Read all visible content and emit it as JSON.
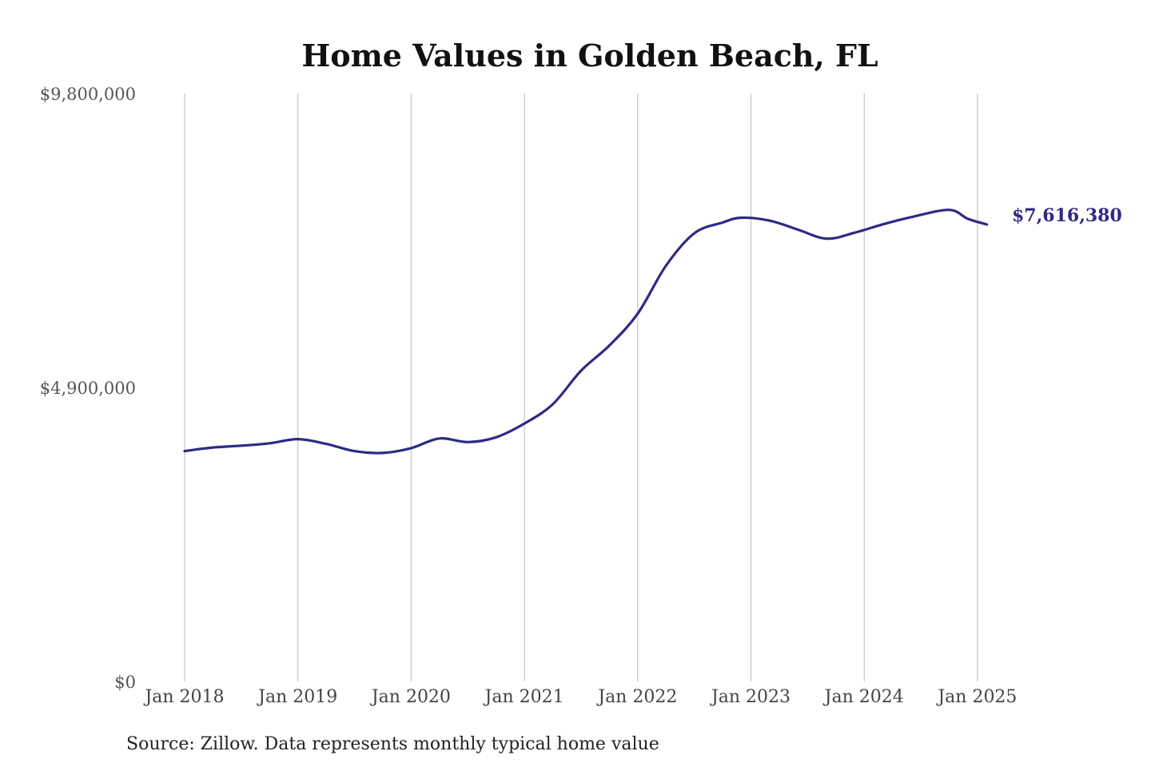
{
  "chart_data": {
    "type": "line",
    "title": "Home Values in Golden Beach, FL",
    "source": "Source: Zillow. Data represents monthly typical home value",
    "xlabel": "",
    "ylabel": "",
    "ylim": [
      0,
      9800000
    ],
    "yticks": [
      {
        "value": 0,
        "label": "$0"
      },
      {
        "value": 4900000,
        "label": "$4,900,000"
      },
      {
        "value": 9800000,
        "label": "$9,800,000"
      }
    ],
    "xticks": [
      {
        "value": "2018-01",
        "label": "Jan 2018"
      },
      {
        "value": "2019-01",
        "label": "Jan 2019"
      },
      {
        "value": "2020-01",
        "label": "Jan 2020"
      },
      {
        "value": "2021-01",
        "label": "Jan 2021"
      },
      {
        "value": "2022-01",
        "label": "Jan 2022"
      },
      {
        "value": "2023-01",
        "label": "Jan 2023"
      },
      {
        "value": "2024-01",
        "label": "Jan 2024"
      },
      {
        "value": "2025-01",
        "label": "Jan 2025"
      }
    ],
    "grid": "vertical",
    "legend": "none",
    "color": "#2e2a85",
    "end_label": "$7,616,380",
    "series": [
      {
        "x": [
          "2018-01",
          "2018-04",
          "2018-07",
          "2018-10",
          "2019-01",
          "2019-04",
          "2019-07",
          "2019-10",
          "2020-01",
          "2020-04",
          "2020-07",
          "2020-10",
          "2021-01",
          "2021-04",
          "2021-07",
          "2021-10",
          "2022-01",
          "2022-04",
          "2022-07",
          "2022-10",
          "2022-12",
          "2023-03",
          "2023-06",
          "2023-09",
          "2023-12",
          "2024-03",
          "2024-06",
          "2024-10",
          "2024-12",
          "2025-02"
        ],
        "values": [
          3840000,
          3900000,
          3930000,
          3970000,
          4040000,
          3960000,
          3840000,
          3810000,
          3890000,
          4050000,
          3990000,
          4070000,
          4300000,
          4620000,
          5180000,
          5600000,
          6130000,
          6930000,
          7470000,
          7650000,
          7730000,
          7680000,
          7530000,
          7380000,
          7480000,
          7620000,
          7740000,
          7860000,
          7710000,
          7616380
        ]
      }
    ]
  }
}
